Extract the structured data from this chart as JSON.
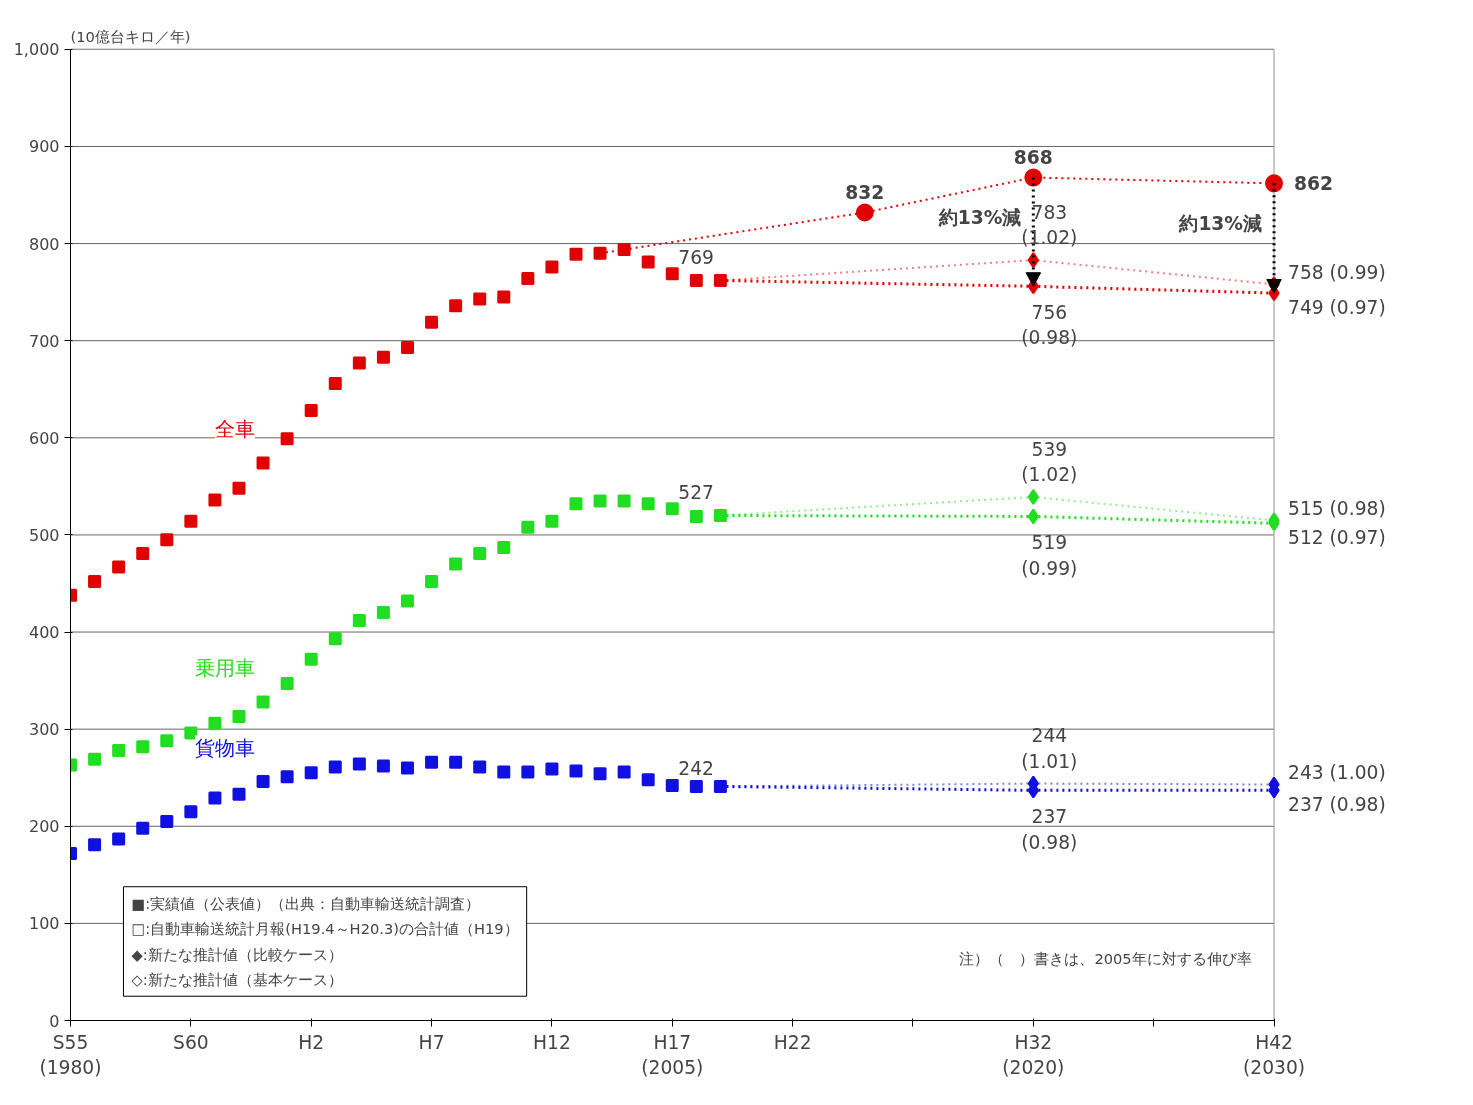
{
  "chart_data": {
    "type": "scatter",
    "ylabel": "(10億台キロ／年)",
    "categories": [
      "S55\n(1980)",
      null,
      null,
      null,
      null,
      "S60",
      null,
      null,
      null,
      null,
      "H2",
      null,
      null,
      null,
      null,
      "H7",
      null,
      null,
      null,
      null,
      "H12",
      null,
      null,
      null,
      null,
      "H17\n(2005)",
      null,
      null,
      null,
      null,
      "H22",
      null,
      null,
      null,
      null,
      null,
      null,
      null,
      null,
      null,
      "H32\n(2020)",
      null,
      null,
      null,
      null,
      null,
      null,
      null,
      null,
      null,
      "H42\n(2030)"
    ],
    "ylim": [
      0,
      1000
    ],
    "yticks": [
      0,
      100,
      200,
      300,
      400,
      500,
      600,
      700,
      800,
      900,
      {
        "value": 1000,
        "label": "1,000"
      }
    ],
    "grid": "y",
    "series": [
      {
        "name": "全車",
        "marker": "square",
        "color": "#e00000",
        "values": [
          438,
          452,
          467,
          481,
          495,
          514,
          536,
          548,
          574,
          599,
          628,
          656,
          677,
          683,
          693,
          719,
          736,
          743,
          745,
          764,
          776,
          789,
          790,
          794,
          781,
          769,
          762,
          null,
          null,
          null,
          null,
          null,
          null,
          null,
          null,
          null,
          null,
          null,
          null,
          null,
          null,
          null,
          null,
          null,
          null,
          null,
          null,
          null,
          null,
          null,
          null
        ],
        "value_labels": [
          null,
          null,
          null,
          null,
          null,
          null,
          null,
          null,
          null,
          null,
          null,
          null,
          null,
          null,
          null,
          null,
          null,
          null,
          null,
          null,
          null,
          null,
          null,
          null,
          null,
          "769",
          null,
          null,
          null,
          null,
          null,
          null,
          null,
          null,
          null,
          null,
          null,
          null,
          null,
          null,
          null,
          null,
          null,
          null,
          null,
          null,
          null,
          null,
          null,
          null,
          null
        ]
      },
      {
        "name": "乗用車",
        "marker": "square",
        "color": "#22dd22",
        "values": [
          263,
          269,
          278,
          282,
          288,
          296,
          306,
          313,
          328,
          347,
          372,
          393,
          412,
          420,
          432,
          452,
          470,
          481,
          487,
          508,
          514,
          532,
          535,
          535,
          532,
          527,
          519,
          null,
          null,
          null,
          null,
          null,
          null,
          null,
          null,
          null,
          null,
          null,
          null,
          null,
          null,
          null,
          null,
          null,
          null,
          null,
          null,
          null,
          null,
          null,
          null
        ],
        "value_labels": [
          null,
          null,
          null,
          null,
          null,
          null,
          null,
          null,
          null,
          null,
          null,
          null,
          null,
          null,
          null,
          null,
          null,
          null,
          null,
          null,
          null,
          null,
          null,
          null,
          null,
          "527",
          null,
          null,
          null,
          null,
          null,
          null,
          null,
          null,
          null,
          null,
          null,
          null,
          null,
          null,
          null,
          null,
          null,
          null,
          null,
          null,
          null,
          null,
          null,
          null,
          null
        ]
      },
      {
        "name": "貨物車",
        "marker": "square",
        "color": "#1010e0",
        "values": [
          172,
          181,
          187,
          198,
          205,
          215,
          229,
          233,
          246,
          251,
          255,
          261,
          264,
          262,
          260,
          266,
          266,
          261,
          256,
          256,
          259,
          257,
          254,
          256,
          248,
          242,
          241,
          null,
          null,
          null,
          null,
          null,
          null,
          null,
          null,
          null,
          null,
          null,
          null,
          null,
          null,
          null,
          null,
          null,
          null,
          null,
          null,
          null,
          null,
          null,
          null
        ],
        "value_labels": [
          null,
          null,
          null,
          null,
          null,
          null,
          null,
          null,
          null,
          null,
          null,
          null,
          null,
          null,
          null,
          null,
          null,
          null,
          null,
          null,
          null,
          null,
          null,
          null,
          null,
          "242",
          null,
          null,
          null,
          null,
          null,
          null,
          null,
          null,
          null,
          null,
          null,
          null,
          null,
          null,
          null,
          null,
          null,
          null,
          null,
          null,
          null,
          null,
          null,
          null,
          null
        ]
      },
      {
        "type": "line",
        "line_style": "dotted",
        "marker": "none",
        "color": "#e00000",
        "values": [
          null,
          null,
          null,
          null,
          null,
          null,
          null,
          null,
          null,
          null,
          null,
          null,
          null,
          null,
          null,
          null,
          null,
          null,
          null,
          null,
          null,
          null,
          790,
          null,
          null,
          null,
          null,
          null,
          null,
          null,
          null,
          null,
          null,
          832,
          null,
          null,
          null,
          null,
          null,
          null,
          868,
          null,
          null,
          null,
          null,
          null,
          null,
          null,
          null,
          null,
          862
        ]
      },
      {
        "marker": "circle",
        "color": "#e00000",
        "values": [
          null,
          null,
          null,
          null,
          null,
          null,
          null,
          null,
          null,
          null,
          null,
          null,
          null,
          null,
          null,
          null,
          null,
          null,
          null,
          null,
          null,
          null,
          null,
          null,
          null,
          null,
          null,
          null,
          null,
          null,
          null,
          null,
          null,
          832,
          null,
          null,
          null,
          null,
          null,
          null,
          868,
          null,
          null,
          null,
          null,
          null,
          null,
          null,
          null,
          null,
          862
        ],
        "value_labels": [
          null,
          null,
          null,
          null,
          null,
          null,
          null,
          null,
          null,
          null,
          null,
          null,
          null,
          null,
          null,
          null,
          null,
          null,
          null,
          null,
          null,
          null,
          null,
          null,
          null,
          null,
          null,
          null,
          null,
          null,
          null,
          null,
          null,
          "832",
          null,
          null,
          null,
          null,
          null,
          null,
          "868",
          null,
          null,
          null,
          null,
          null,
          null,
          null,
          null,
          null,
          "862"
        ]
      },
      {
        "type": "line",
        "line_style": "dotted",
        "marker": "none",
        "color": "#f08080",
        "values": [
          null,
          null,
          null,
          null,
          null,
          null,
          null,
          null,
          null,
          null,
          null,
          null,
          null,
          null,
          null,
          null,
          null,
          null,
          null,
          null,
          null,
          null,
          null,
          null,
          null,
          null,
          null,
          762,
          null,
          null,
          null,
          null,
          null,
          null,
          null,
          null,
          null,
          null,
          null,
          null,
          783,
          null,
          null,
          null,
          null,
          null,
          null,
          null,
          null,
          null,
          758
        ]
      },
      {
        "type": "line",
        "line_style": "dotted",
        "marker": "none",
        "color": "#e00000",
        "values": [
          null,
          null,
          null,
          null,
          null,
          null,
          null,
          null,
          null,
          null,
          null,
          null,
          null,
          null,
          null,
          null,
          null,
          null,
          null,
          null,
          null,
          null,
          null,
          null,
          null,
          null,
          null,
          762,
          null,
          null,
          null,
          null,
          null,
          null,
          null,
          null,
          null,
          null,
          null,
          null,
          756,
          null,
          null,
          null,
          null,
          null,
          null,
          null,
          null,
          null,
          749
        ]
      },
      {
        "type": "line",
        "line_style": "dotted",
        "marker": "none",
        "color": "#90ee90",
        "values": [
          null,
          null,
          null,
          null,
          null,
          null,
          null,
          null,
          null,
          null,
          null,
          null,
          null,
          null,
          null,
          null,
          null,
          null,
          null,
          null,
          null,
          null,
          null,
          null,
          null,
          null,
          null,
          520,
          null,
          null,
          null,
          null,
          null,
          null,
          null,
          null,
          null,
          null,
          null,
          null,
          539,
          null,
          null,
          null,
          null,
          null,
          null,
          null,
          null,
          null,
          515
        ]
      },
      {
        "type": "line",
        "line_style": "dotted",
        "marker": "none",
        "color": "#22dd22",
        "values": [
          null,
          null,
          null,
          null,
          null,
          null,
          null,
          null,
          null,
          null,
          null,
          null,
          null,
          null,
          null,
          null,
          null,
          null,
          null,
          null,
          null,
          null,
          null,
          null,
          null,
          null,
          null,
          520,
          null,
          null,
          null,
          null,
          null,
          null,
          null,
          null,
          null,
          null,
          null,
          null,
          519,
          null,
          null,
          null,
          null,
          null,
          null,
          null,
          null,
          null,
          512
        ]
      },
      {
        "type": "line",
        "line_style": "dotted",
        "marker": "none",
        "color": "#8080f0",
        "values": [
          null,
          null,
          null,
          null,
          null,
          null,
          null,
          null,
          null,
          null,
          null,
          null,
          null,
          null,
          null,
          null,
          null,
          null,
          null,
          null,
          null,
          null,
          null,
          null,
          null,
          null,
          null,
          241,
          null,
          null,
          null,
          null,
          null,
          null,
          null,
          null,
          null,
          null,
          null,
          null,
          244,
          null,
          null,
          null,
          null,
          null,
          null,
          null,
          null,
          null,
          243
        ]
      },
      {
        "type": "line",
        "line_style": "dotted",
        "marker": "none",
        "color": "#1010e0",
        "values": [
          null,
          null,
          null,
          null,
          null,
          null,
          null,
          null,
          null,
          null,
          null,
          null,
          null,
          null,
          null,
          null,
          null,
          null,
          null,
          null,
          null,
          null,
          null,
          null,
          null,
          null,
          null,
          241,
          null,
          null,
          null,
          null,
          null,
          null,
          null,
          null,
          null,
          null,
          null,
          null,
          237,
          null,
          null,
          null,
          null,
          null,
          null,
          null,
          null,
          null,
          237
        ]
      },
      {
        "marker": "square",
        "color": "#e00000",
        "values": [
          null,
          null,
          null,
          null,
          null,
          null,
          null,
          null,
          null,
          null,
          null,
          null,
          null,
          null,
          null,
          null,
          null,
          null,
          null,
          null,
          null,
          null,
          null,
          null,
          null,
          null,
          null,
          762,
          null,
          null,
          null,
          null,
          null,
          null,
          null,
          null,
          null,
          null,
          null,
          null,
          null,
          null,
          null,
          null,
          null,
          null,
          null,
          null,
          null,
          null,
          null
        ]
      },
      {
        "marker": "square",
        "color": "#22dd22",
        "values": [
          null,
          null,
          null,
          null,
          null,
          null,
          null,
          null,
          null,
          null,
          null,
          null,
          null,
          null,
          null,
          null,
          null,
          null,
          null,
          null,
          null,
          null,
          null,
          null,
          null,
          null,
          null,
          520,
          null,
          null,
          null,
          null,
          null,
          null,
          null,
          null,
          null,
          null,
          null,
          null,
          null,
          null,
          null,
          null,
          null,
          null,
          null,
          null,
          null,
          null,
          null
        ]
      },
      {
        "marker": "square",
        "color": "#1010e0",
        "values": [
          null,
          null,
          null,
          null,
          null,
          null,
          null,
          null,
          null,
          null,
          null,
          null,
          null,
          null,
          null,
          null,
          null,
          null,
          null,
          null,
          null,
          null,
          null,
          null,
          null,
          null,
          null,
          241,
          null,
          null,
          null,
          null,
          null,
          null,
          null,
          null,
          null,
          null,
          null,
          null,
          null,
          null,
          null,
          null,
          null,
          null,
          null,
          null,
          null,
          null,
          null
        ]
      },
      {
        "marker": "diamond",
        "color": "#e00000",
        "values": [
          null,
          null,
          null,
          null,
          null,
          null,
          null,
          null,
          null,
          null,
          null,
          null,
          null,
          null,
          null,
          null,
          null,
          null,
          null,
          null,
          null,
          null,
          null,
          null,
          null,
          null,
          null,
          null,
          null,
          null,
          null,
          null,
          null,
          null,
          null,
          null,
          null,
          null,
          null,
          null,
          783,
          null,
          null,
          null,
          null,
          null,
          null,
          null,
          null,
          null,
          758
        ],
        "value_labels": [
          null,
          null,
          null,
          null,
          null,
          null,
          null,
          null,
          null,
          null,
          null,
          null,
          null,
          null,
          null,
          null,
          null,
          null,
          null,
          null,
          null,
          null,
          null,
          null,
          null,
          null,
          null,
          null,
          null,
          null,
          null,
          null,
          null,
          null,
          null,
          null,
          null,
          null,
          null,
          null,
          "783\n(1.02)",
          null,
          null,
          null,
          null,
          null,
          null,
          null,
          null,
          null,
          "758 (0.99)"
        ]
      },
      {
        "marker": "diamond",
        "color": "#e00000",
        "values": [
          null,
          null,
          null,
          null,
          null,
          null,
          null,
          null,
          null,
          null,
          null,
          null,
          null,
          null,
          null,
          null,
          null,
          null,
          null,
          null,
          null,
          null,
          null,
          null,
          null,
          null,
          null,
          null,
          null,
          null,
          null,
          null,
          null,
          null,
          null,
          null,
          null,
          null,
          null,
          null,
          756,
          null,
          null,
          null,
          null,
          null,
          null,
          null,
          null,
          null,
          749
        ],
        "value_labels": [
          null,
          null,
          null,
          null,
          null,
          null,
          null,
          null,
          null,
          null,
          null,
          null,
          null,
          null,
          null,
          null,
          null,
          null,
          null,
          null,
          null,
          null,
          null,
          null,
          null,
          null,
          null,
          null,
          null,
          null,
          null,
          null,
          null,
          null,
          null,
          null,
          null,
          null,
          null,
          null,
          "756\n(0.98)",
          null,
          null,
          null,
          null,
          null,
          null,
          null,
          null,
          null,
          "749 (0.97)"
        ]
      },
      {
        "marker": "diamond",
        "color": "#22dd22",
        "values": [
          null,
          null,
          null,
          null,
          null,
          null,
          null,
          null,
          null,
          null,
          null,
          null,
          null,
          null,
          null,
          null,
          null,
          null,
          null,
          null,
          null,
          null,
          null,
          null,
          null,
          null,
          null,
          null,
          null,
          null,
          null,
          null,
          null,
          null,
          null,
          null,
          null,
          null,
          null,
          null,
          539,
          null,
          null,
          null,
          null,
          null,
          null,
          null,
          null,
          null,
          515
        ],
        "value_labels": [
          null,
          null,
          null,
          null,
          null,
          null,
          null,
          null,
          null,
          null,
          null,
          null,
          null,
          null,
          null,
          null,
          null,
          null,
          null,
          null,
          null,
          null,
          null,
          null,
          null,
          null,
          null,
          null,
          null,
          null,
          null,
          null,
          null,
          null,
          null,
          null,
          null,
          null,
          null,
          null,
          "539\n(1.02)",
          null,
          null,
          null,
          null,
          null,
          null,
          null,
          null,
          null,
          "515 (0.98)"
        ]
      },
      {
        "marker": "diamond",
        "color": "#22dd22",
        "values": [
          null,
          null,
          null,
          null,
          null,
          null,
          null,
          null,
          null,
          null,
          null,
          null,
          null,
          null,
          null,
          null,
          null,
          null,
          null,
          null,
          null,
          null,
          null,
          null,
          null,
          null,
          null,
          null,
          null,
          null,
          null,
          null,
          null,
          null,
          null,
          null,
          null,
          null,
          null,
          null,
          519,
          null,
          null,
          null,
          null,
          null,
          null,
          null,
          null,
          null,
          512
        ],
        "value_labels": [
          null,
          null,
          null,
          null,
          null,
          null,
          null,
          null,
          null,
          null,
          null,
          null,
          null,
          null,
          null,
          null,
          null,
          null,
          null,
          null,
          null,
          null,
          null,
          null,
          null,
          null,
          null,
          null,
          null,
          null,
          null,
          null,
          null,
          null,
          null,
          null,
          null,
          null,
          null,
          null,
          "519\n(0.99)",
          null,
          null,
          null,
          null,
          null,
          null,
          null,
          null,
          null,
          "512 (0.97)"
        ]
      },
      {
        "marker": "diamond",
        "color": "#1010e0",
        "values": [
          null,
          null,
          null,
          null,
          null,
          null,
          null,
          null,
          null,
          null,
          null,
          null,
          null,
          null,
          null,
          null,
          null,
          null,
          null,
          null,
          null,
          null,
          null,
          null,
          null,
          null,
          null,
          null,
          null,
          null,
          null,
          null,
          null,
          null,
          null,
          null,
          null,
          null,
          null,
          null,
          244,
          null,
          null,
          null,
          null,
          null,
          null,
          null,
          null,
          null,
          243
        ],
        "value_labels": [
          null,
          null,
          null,
          null,
          null,
          null,
          null,
          null,
          null,
          null,
          null,
          null,
          null,
          null,
          null,
          null,
          null,
          null,
          null,
          null,
          null,
          null,
          null,
          null,
          null,
          null,
          null,
          null,
          null,
          null,
          null,
          null,
          null,
          null,
          null,
          null,
          null,
          null,
          null,
          null,
          "244\n(1.01)",
          null,
          null,
          null,
          null,
          null,
          null,
          null,
          null,
          null,
          "243 (1.00)"
        ]
      },
      {
        "marker": "diamond",
        "color": "#1010e0",
        "values": [
          null,
          null,
          null,
          null,
          null,
          null,
          null,
          null,
          null,
          null,
          null,
          null,
          null,
          null,
          null,
          null,
          null,
          null,
          null,
          null,
          null,
          null,
          null,
          null,
          null,
          null,
          null,
          null,
          null,
          null,
          null,
          null,
          null,
          null,
          null,
          null,
          null,
          null,
          null,
          null,
          237,
          null,
          null,
          null,
          null,
          null,
          null,
          null,
          null,
          null,
          237
        ],
        "value_labels": [
          null,
          null,
          null,
          null,
          null,
          null,
          null,
          null,
          null,
          null,
          null,
          null,
          null,
          null,
          null,
          null,
          null,
          null,
          null,
          null,
          null,
          null,
          null,
          null,
          null,
          null,
          null,
          null,
          null,
          null,
          null,
          null,
          null,
          null,
          null,
          null,
          null,
          null,
          null,
          null,
          "237\n(0.98)",
          null,
          null,
          null,
          null,
          null,
          null,
          null,
          null,
          null,
          "237 (0.98)"
        ]
      }
    ],
    "annotations": [
      "■:実績値（公表値）（出典：自動車輸送統計調査）",
      "□:自動車輸送統計月報(H19.4～H20.3)の合計値（H19）",
      "◆:新たな推計値（比較ケース）",
      "◇:新たな推計値（基本ケース）",
      "注）（　）書きは、2005年に対する伸び率",
      "約13%減",
      "約13%減"
    ]
  }
}
